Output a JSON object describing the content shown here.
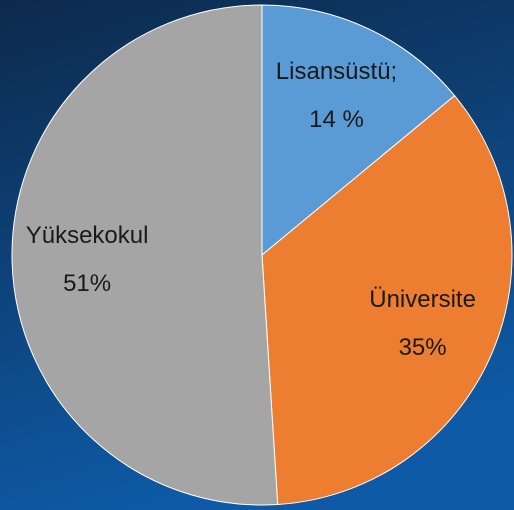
{
  "chart_data": {
    "type": "pie",
    "categories": [
      "Lisansüstü;",
      "Üniversite",
      "Yüksekokul"
    ],
    "values": [
      14,
      35,
      51
    ],
    "value_labels": [
      "14 %",
      "35%",
      "51%"
    ],
    "colors": [
      "#5b9bd5",
      "#ed7d31",
      "#a5a5a5"
    ]
  }
}
